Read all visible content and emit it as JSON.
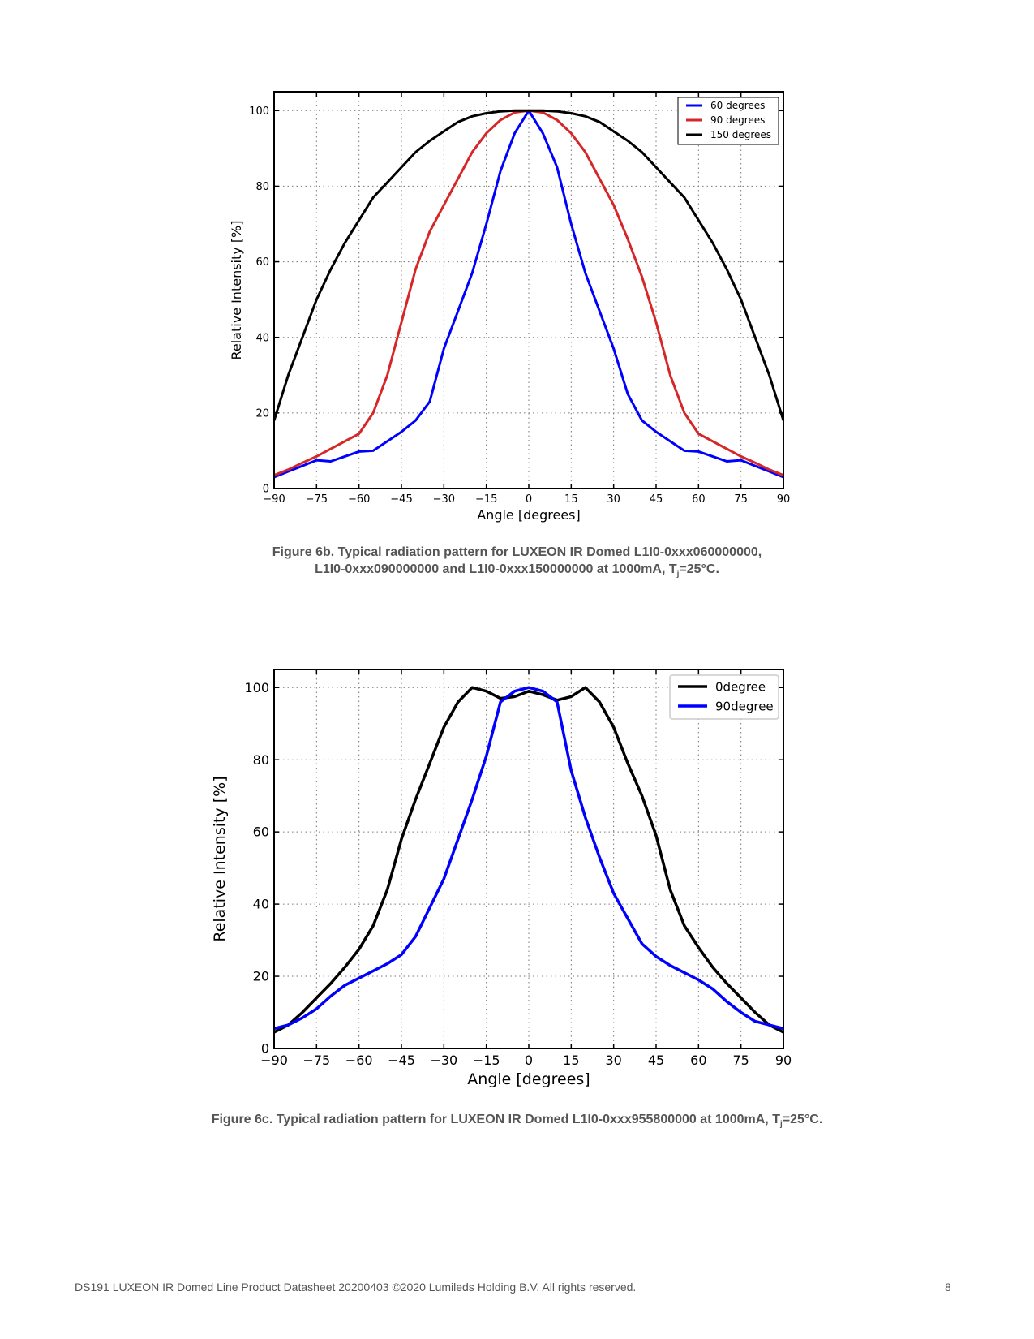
{
  "chart_data": [
    {
      "type": "line",
      "title": "",
      "xlabel": "Angle [degrees]",
      "ylabel": "Relative Intensity [%]",
      "xlim": [
        -90,
        90
      ],
      "ylim": [
        0,
        105
      ],
      "xticks": [
        "−90",
        "−75",
        "−60",
        "−45",
        "−30",
        "−15",
        "0",
        "15",
        "30",
        "45",
        "60",
        "75",
        "90"
      ],
      "yticks": [
        "0",
        "20",
        "40",
        "60",
        "80",
        "100"
      ],
      "grid": true,
      "legend_position": "top-right",
      "x": [
        -90,
        -85,
        -80,
        -75,
        -70,
        -65,
        -60,
        -55,
        -50,
        -45,
        -40,
        -35,
        -30,
        -25,
        -20,
        -15,
        -10,
        -5,
        0,
        5,
        10,
        15,
        20,
        25,
        30,
        35,
        40,
        45,
        50,
        55,
        60,
        65,
        70,
        75,
        80,
        85,
        90
      ],
      "series": [
        {
          "name": "60 degrees",
          "color": "#0000ff",
          "values": [
            3,
            4.5,
            6,
            7.5,
            7.2,
            8.5,
            9.8,
            10,
            12.5,
            15,
            18,
            23,
            37,
            47,
            57,
            70,
            84,
            94,
            100,
            94,
            85,
            70,
            57,
            47,
            37,
            25,
            18,
            15,
            12.5,
            10,
            9.8,
            8.5,
            7.2,
            7.5,
            6,
            4.5,
            3
          ]
        },
        {
          "name": "90 degrees",
          "color": "#d62728",
          "values": [
            3.5,
            5,
            6.8,
            8.5,
            10.5,
            12.5,
            14.5,
            20,
            30,
            44,
            58,
            68,
            75,
            82,
            89,
            94,
            97.5,
            99.5,
            100,
            99.5,
            97.5,
            94,
            89,
            82,
            75,
            66,
            56,
            44,
            30,
            20,
            14.5,
            12.5,
            10.5,
            8.5,
            6.8,
            5,
            3.5
          ]
        },
        {
          "name": "150 degrees",
          "color": "#000000",
          "values": [
            18,
            30,
            40,
            50,
            58,
            65,
            71,
            77,
            81,
            85,
            89,
            92,
            94.5,
            97,
            98.5,
            99.3,
            99.8,
            100,
            100,
            100,
            99.8,
            99.3,
            98.5,
            97,
            94.5,
            92,
            89,
            85,
            81,
            77,
            71,
            65,
            58,
            50,
            40,
            30,
            18
          ]
        }
      ],
      "caption": {
        "line1": "Figure 6b. Typical radiation pattern for LUXEON IR Domed L1I0-0xxx060000000,",
        "line2_pre": "L1I0-0xxx090000000 and L1I0-0xxx150000000 at 1000mA, T",
        "line2_sub": "j",
        "line2_post": "=25°C."
      }
    },
    {
      "type": "line",
      "title": "",
      "xlabel": "Angle [degrees]",
      "ylabel": "Relative Intensity [%]",
      "xlim": [
        -90,
        90
      ],
      "ylim": [
        0,
        105
      ],
      "xticks": [
        "−90",
        "−75",
        "−60",
        "−45",
        "−30",
        "−15",
        "0",
        "15",
        "30",
        "45",
        "60",
        "75",
        "90"
      ],
      "yticks": [
        "0",
        "20",
        "40",
        "60",
        "80",
        "100"
      ],
      "grid": true,
      "legend_position": "top-right",
      "x": [
        -90,
        -85,
        -80,
        -75,
        -70,
        -65,
        -60,
        -55,
        -50,
        -45,
        -40,
        -35,
        -30,
        -25,
        -20,
        -15,
        -10,
        -5,
        0,
        5,
        10,
        15,
        20,
        25,
        30,
        35,
        40,
        45,
        50,
        55,
        60,
        65,
        70,
        75,
        80,
        85,
        90
      ],
      "series": [
        {
          "name": "0degree",
          "color": "#000000",
          "values": [
            4.5,
            6.5,
            10,
            14,
            18,
            22.5,
            27.5,
            34,
            44,
            58,
            69,
            79,
            89,
            96,
            100,
            99,
            97,
            97.5,
            99,
            98,
            96.5,
            97.5,
            100,
            96,
            89,
            79,
            70,
            59,
            44,
            34,
            28,
            22.5,
            18,
            14,
            10,
            6.5,
            4.5
          ]
        },
        {
          "name": "90degree",
          "color": "#0000ff",
          "values": [
            5.5,
            6.5,
            8.5,
            11,
            14.5,
            17.5,
            19.5,
            21.5,
            23.5,
            26,
            31,
            39,
            47,
            58,
            69,
            81,
            96,
            99,
            100,
            99,
            96,
            77,
            64,
            53,
            43,
            36,
            29,
            25.5,
            23,
            21,
            19,
            16.5,
            13,
            10,
            7.5,
            6.5,
            5.5
          ]
        }
      ],
      "caption": {
        "line1_pre": "Figure 6c. Typical radiation pattern for LUXEON IR Domed L1I0-0xxx955800000 at 1000mA, T",
        "line1_sub": "j",
        "line1_post": "=25°C."
      }
    }
  ],
  "footer": {
    "text": "DS191 LUXEON IR Domed Line Product Datasheet  20200403 ©2020 Lumileds Holding B.V. All rights reserved.",
    "page": "8"
  }
}
